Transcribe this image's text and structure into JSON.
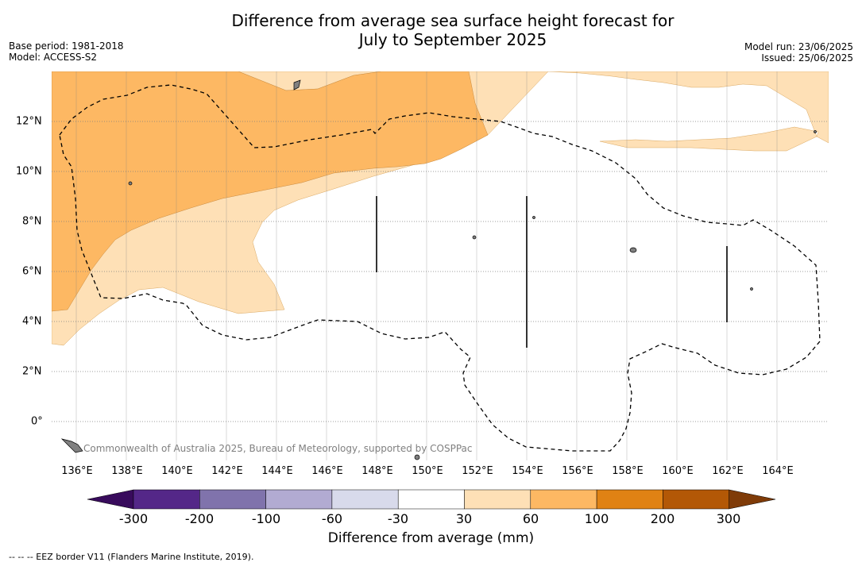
{
  "title_line1": "Difference from average sea surface height forecast for",
  "title_line2": "July to September 2025",
  "meta_left": [
    "Base period: 1981-2018",
    "Model: ACCESS-S2"
  ],
  "meta_right": [
    "Model run: 23/06/2025",
    "Issued: 25/06/2025"
  ],
  "copyright": "Commonwealth of Australia 2025, Bureau of Meteorology, supported by COSPPac",
  "longitude_labels": [
    "136°E",
    "138°E",
    "140°E",
    "142°E",
    "144°E",
    "146°E",
    "148°E",
    "150°E",
    "152°E",
    "154°E",
    "156°E",
    "158°E",
    "160°E",
    "162°E",
    "164°E"
  ],
  "latitude_labels": [
    "12°N",
    "10°N",
    "8°N",
    "6°N",
    "4°N",
    "2°N",
    "0°"
  ],
  "colorbar": {
    "label": "Difference from average (mm)",
    "ticks": [
      "-300",
      "-200",
      "-100",
      "-60",
      "-30",
      "30",
      "60",
      "100",
      "200",
      "300"
    ],
    "colors": [
      "#380b5c",
      "#542788",
      "#8073ac",
      "#b2abd2",
      "#d8daeb",
      "#ffffff",
      "#fee0b6",
      "#fdb863",
      "#e08214",
      "#b35806",
      "#7f3b08"
    ]
  },
  "footnote": "-- -- -- EEZ border V11 (Flanders Marine Institute, 2019).",
  "anomaly_colors": {
    "band_30_60": "#fee0b6",
    "band_60_100": "#fdb863"
  }
}
